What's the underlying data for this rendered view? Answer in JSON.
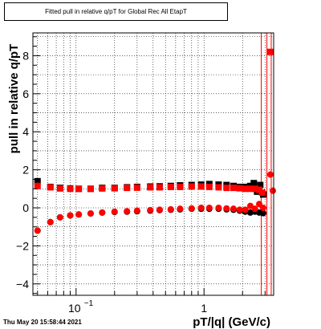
{
  "chart_data": {
    "type": "scatter",
    "title": "Fitted pull in relative q/pT for Global Rec All EtapT",
    "xlabel": "pT/|q| (GeV/c)",
    "ylabel": "pull in relative q/pT",
    "x_scale": "log",
    "xlim": [
      0.046,
      3.5
    ],
    "ylim": [
      -4.6,
      9.2
    ],
    "grid": true,
    "x_ticks": [
      {
        "v": 0.1,
        "base": "10",
        "exp": "−1"
      },
      {
        "v": 1,
        "label": "1"
      }
    ],
    "y_ticks": [
      -4,
      -2,
      0,
      2,
      4,
      6,
      8
    ],
    "vlines": [
      2.8,
      3.1,
      3.35
    ],
    "series": [
      {
        "marker": "square",
        "color": "#000000",
        "x": [
          0.05,
          0.063,
          0.075,
          0.09,
          0.105,
          0.13,
          0.16,
          0.2,
          0.25,
          0.3,
          0.38,
          0.45,
          0.55,
          0.65,
          0.8,
          0.95,
          1.1,
          1.3,
          1.5,
          1.7,
          1.9,
          2.1,
          2.3,
          2.45,
          2.6,
          2.75,
          2.9
        ],
        "y": [
          1.4,
          1.1,
          1.05,
          1.02,
          1.0,
          1.0,
          1.05,
          1.05,
          1.08,
          1.1,
          1.12,
          1.13,
          1.15,
          1.18,
          1.2,
          1.22,
          1.25,
          1.22,
          1.2,
          1.15,
          1.1,
          1.1,
          1.15,
          1.3,
          0.85,
          1.2,
          0.7
        ]
      },
      {
        "marker": "circle",
        "color": "#000000",
        "x": [
          0.05,
          0.063,
          0.075,
          0.09,
          0.105,
          0.13,
          0.16,
          0.2,
          0.25,
          0.3,
          0.38,
          0.45,
          0.55,
          0.65,
          0.8,
          0.95,
          1.1,
          1.3,
          1.5,
          1.7,
          1.9,
          2.1,
          2.3,
          2.5,
          2.7,
          2.9
        ],
        "y": [
          -1.2,
          -0.75,
          -0.5,
          -0.4,
          -0.35,
          -0.3,
          -0.25,
          -0.22,
          -0.2,
          -0.18,
          -0.15,
          -0.12,
          -0.1,
          -0.08,
          -0.05,
          -0.05,
          -0.05,
          -0.05,
          -0.08,
          -0.1,
          -0.15,
          -0.2,
          -0.25,
          -0.2,
          -0.25,
          -0.28
        ]
      },
      {
        "marker": "square",
        "color": "#ff0000",
        "x": [
          0.05,
          0.063,
          0.075,
          0.09,
          0.105,
          0.13,
          0.16,
          0.2,
          0.25,
          0.3,
          0.38,
          0.45,
          0.55,
          0.65,
          0.8,
          0.95,
          1.1,
          1.3,
          1.5,
          1.7,
          1.9,
          2.1,
          2.3,
          2.5,
          2.7,
          2.85,
          3.3
        ],
        "y": [
          1.15,
          1.08,
          1.02,
          1.0,
          1.0,
          1.0,
          1.02,
          1.03,
          1.05,
          1.06,
          1.08,
          1.08,
          1.1,
          1.1,
          1.12,
          1.12,
          1.1,
          1.08,
          1.05,
          1.05,
          1.03,
          1.0,
          1.0,
          1.0,
          0.95,
          0.8,
          8.2
        ]
      },
      {
        "marker": "circle",
        "color": "#ff0000",
        "x": [
          0.05,
          0.063,
          0.075,
          0.09,
          0.105,
          0.13,
          0.16,
          0.2,
          0.25,
          0.3,
          0.38,
          0.45,
          0.55,
          0.65,
          0.8,
          0.95,
          1.1,
          1.3,
          1.5,
          1.7,
          1.9,
          2.1,
          2.3,
          2.5,
          2.7,
          2.9,
          3.3,
          3.45
        ],
        "y": [
          -1.2,
          -0.75,
          -0.5,
          -0.4,
          -0.35,
          -0.3,
          -0.25,
          -0.2,
          -0.18,
          -0.15,
          -0.12,
          -0.1,
          -0.08,
          -0.05,
          -0.03,
          0.0,
          0.0,
          0.0,
          -0.03,
          -0.05,
          -0.1,
          -0.1,
          0.1,
          -0.05,
          0.2,
          0.0,
          1.75,
          0.9
        ]
      }
    ]
  },
  "footer": {
    "date": "Thu May 20 15:58:44 2021"
  }
}
